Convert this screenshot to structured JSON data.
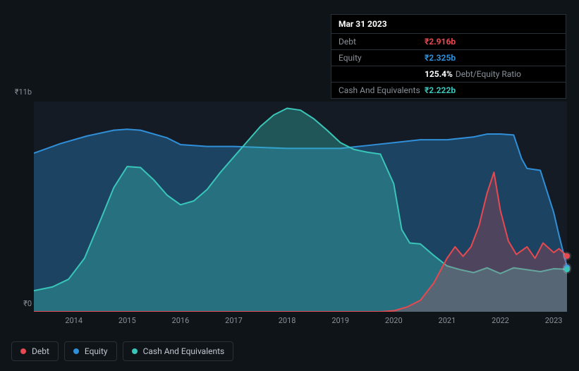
{
  "tooltip": {
    "date": "Mar 31 2023",
    "rows": [
      {
        "label": "Debt",
        "value": "₹2.916b",
        "color": "#e8484f"
      },
      {
        "label": "Equity",
        "value": "₹2.325b",
        "color": "#2f8fd8"
      },
      {
        "label": "",
        "value": "125.4%",
        "suffix": "Debt/Equity Ratio",
        "color": "#ffffff"
      },
      {
        "label": "Cash And Equivalents",
        "value": "₹2.222b",
        "color": "#39c6b9"
      }
    ]
  },
  "chart": {
    "type": "area",
    "background_color": "#151b24",
    "page_bg": "#0f1419",
    "ylabel_top": "₹11b",
    "ylabel_bottom": "₹0",
    "ylim": [
      0,
      11
    ],
    "xlim": [
      2013.25,
      2023.25
    ],
    "x_ticks": [
      2014,
      2015,
      2016,
      2017,
      2018,
      2019,
      2020,
      2021,
      2022,
      2023
    ],
    "series": [
      {
        "name": "Equity",
        "color": "#2f8fd8",
        "fill_opacity": 0.35,
        "line_width": 2,
        "points": [
          [
            2013.25,
            8.3
          ],
          [
            2013.75,
            8.8
          ],
          [
            2014.25,
            9.2
          ],
          [
            2014.75,
            9.5
          ],
          [
            2015.0,
            9.55
          ],
          [
            2015.25,
            9.5
          ],
          [
            2015.75,
            9.1
          ],
          [
            2016.0,
            8.75
          ],
          [
            2016.5,
            8.65
          ],
          [
            2017.0,
            8.65
          ],
          [
            2017.5,
            8.6
          ],
          [
            2018.0,
            8.55
          ],
          [
            2018.5,
            8.55
          ],
          [
            2019.0,
            8.55
          ],
          [
            2019.5,
            8.7
          ],
          [
            2020.0,
            8.85
          ],
          [
            2020.5,
            9.0
          ],
          [
            2021.0,
            9.0
          ],
          [
            2021.5,
            9.15
          ],
          [
            2021.75,
            9.3
          ],
          [
            2022.0,
            9.3
          ],
          [
            2022.25,
            9.25
          ],
          [
            2022.4,
            8.0
          ],
          [
            2022.5,
            7.5
          ],
          [
            2022.75,
            7.4
          ],
          [
            2023.0,
            5.2
          ],
          [
            2023.1,
            4.0
          ],
          [
            2023.25,
            2.325
          ]
        ]
      },
      {
        "name": "Cash And Equivalents",
        "color": "#39c6b9",
        "fill_opacity": 0.35,
        "line_width": 2,
        "points": [
          [
            2013.25,
            1.1
          ],
          [
            2013.6,
            1.3
          ],
          [
            2013.9,
            1.7
          ],
          [
            2014.2,
            2.8
          ],
          [
            2014.5,
            4.8
          ],
          [
            2014.75,
            6.5
          ],
          [
            2015.0,
            7.6
          ],
          [
            2015.25,
            7.55
          ],
          [
            2015.5,
            6.9
          ],
          [
            2015.75,
            6.1
          ],
          [
            2016.0,
            5.6
          ],
          [
            2016.25,
            5.8
          ],
          [
            2016.5,
            6.4
          ],
          [
            2016.75,
            7.3
          ],
          [
            2017.0,
            8.1
          ],
          [
            2017.25,
            8.9
          ],
          [
            2017.5,
            9.7
          ],
          [
            2017.75,
            10.3
          ],
          [
            2018.0,
            10.65
          ],
          [
            2018.25,
            10.55
          ],
          [
            2018.5,
            10.1
          ],
          [
            2018.75,
            9.5
          ],
          [
            2019.0,
            8.85
          ],
          [
            2019.25,
            8.5
          ],
          [
            2019.5,
            8.35
          ],
          [
            2019.75,
            8.25
          ],
          [
            2020.0,
            6.7
          ],
          [
            2020.15,
            4.3
          ],
          [
            2020.3,
            3.6
          ],
          [
            2020.5,
            3.55
          ],
          [
            2020.75,
            2.95
          ],
          [
            2021.0,
            2.4
          ],
          [
            2021.25,
            2.2
          ],
          [
            2021.5,
            2.05
          ],
          [
            2021.75,
            2.3
          ],
          [
            2022.0,
            2.0
          ],
          [
            2022.25,
            2.3
          ],
          [
            2022.5,
            2.2
          ],
          [
            2022.75,
            2.1
          ],
          [
            2023.0,
            2.25
          ],
          [
            2023.25,
            2.222
          ]
        ]
      },
      {
        "name": "Debt",
        "color": "#e8484f",
        "fill_opacity": 0.25,
        "line_width": 2,
        "points": [
          [
            2013.25,
            0
          ],
          [
            2019.75,
            0
          ],
          [
            2020.0,
            0.05
          ],
          [
            2020.25,
            0.25
          ],
          [
            2020.5,
            0.6
          ],
          [
            2020.75,
            1.5
          ],
          [
            2021.0,
            2.8
          ],
          [
            2021.15,
            3.4
          ],
          [
            2021.3,
            2.9
          ],
          [
            2021.45,
            3.4
          ],
          [
            2021.6,
            4.5
          ],
          [
            2021.75,
            6.2
          ],
          [
            2021.88,
            7.3
          ],
          [
            2022.0,
            5.3
          ],
          [
            2022.15,
            3.7
          ],
          [
            2022.3,
            3.0
          ],
          [
            2022.5,
            3.4
          ],
          [
            2022.65,
            2.8
          ],
          [
            2022.8,
            3.6
          ],
          [
            2023.0,
            3.1
          ],
          [
            2023.1,
            3.3
          ],
          [
            2023.25,
            2.916
          ]
        ]
      }
    ],
    "end_marker_x": 2023.25
  },
  "legend": {
    "items": [
      {
        "name": "Debt",
        "color": "#e8484f"
      },
      {
        "name": "Equity",
        "color": "#2f8fd8"
      },
      {
        "name": "Cash And Equivalents",
        "color": "#39c6b9"
      }
    ]
  }
}
